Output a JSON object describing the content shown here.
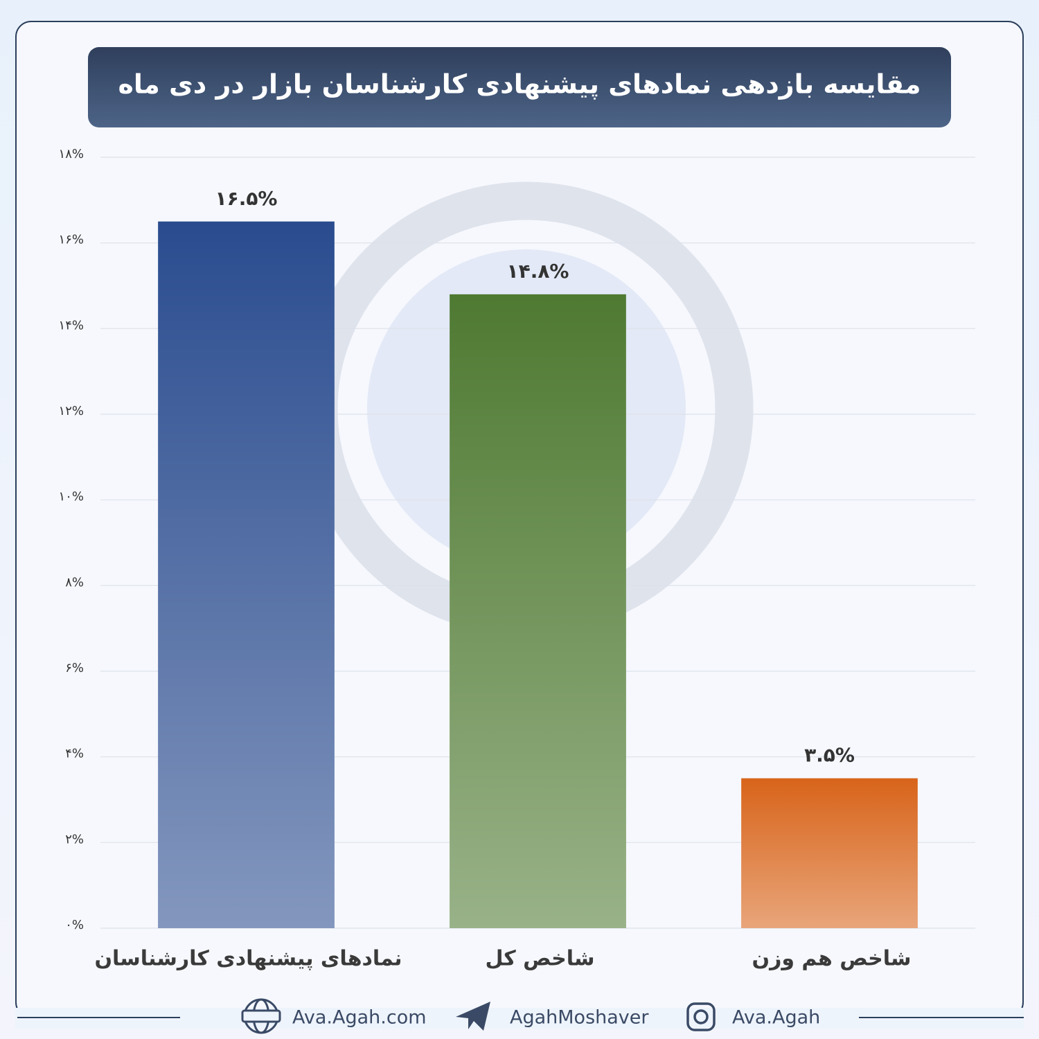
{
  "chart_data": {
    "type": "bar",
    "title": "مقایسه بازدهی نمادهای پیشنهادی کارشناسان بازار در دی ماه",
    "categories": [
      "نمادهای پیشنهادی کارشناسان",
      "شاخص کل",
      "شاخص هم وزن"
    ],
    "values": [
      16.5,
      14.8,
      3.5
    ],
    "value_labels": [
      "۱۶.۵%",
      "۱۴.۸%",
      "۳.۵%"
    ],
    "colors": [
      "#2a4c8f",
      "#4f7a32",
      "#d8641a"
    ],
    "ylim": [
      0,
      18
    ],
    "yticks": [
      {
        "value": 0,
        "label": "۰%"
      },
      {
        "value": 2,
        "label": "۲%"
      },
      {
        "value": 4,
        "label": "۴%"
      },
      {
        "value": 6,
        "label": "۶%"
      },
      {
        "value": 8,
        "label": "۸%"
      },
      {
        "value": 10,
        "label": "۱۰%"
      },
      {
        "value": 12,
        "label": "۱۲%"
      },
      {
        "value": 14,
        "label": "۱۴%"
      },
      {
        "value": 16,
        "label": "۱۶%"
      },
      {
        "value": 18,
        "label": "۱۸%"
      }
    ],
    "grid": true
  },
  "footer": {
    "website": "Ava.Agah.com",
    "telegram": "AgahMoshaver",
    "instagram": "Ava.Agah"
  }
}
